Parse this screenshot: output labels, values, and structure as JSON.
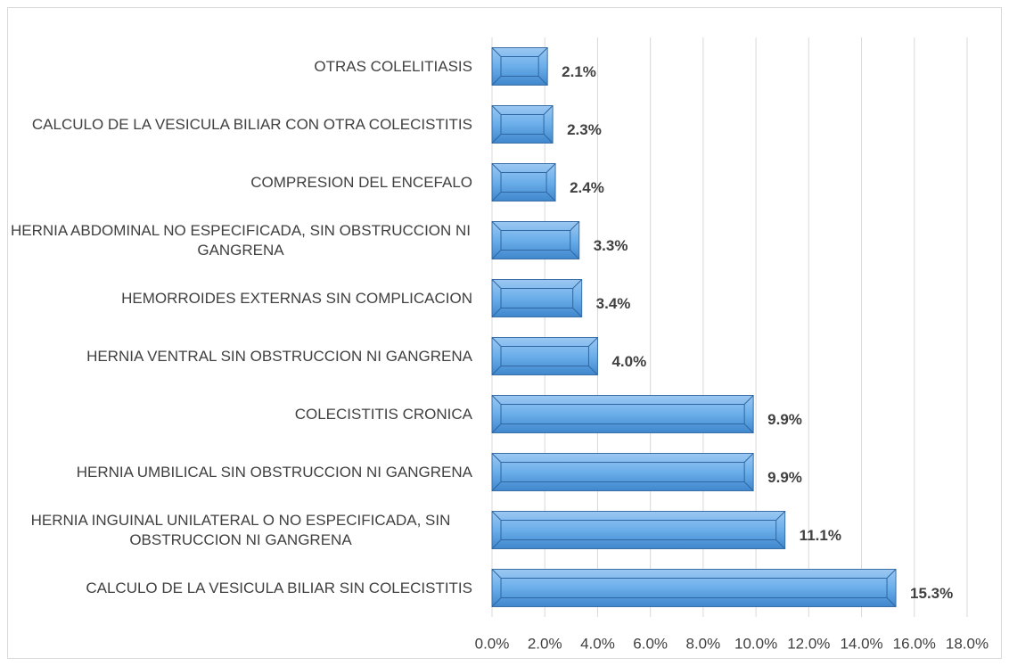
{
  "chart_data": {
    "type": "barh",
    "categories": [
      "OTRAS COLELITIASIS",
      "CALCULO DE LA VESICULA BILIAR CON OTRA COLECISTITIS",
      "COMPRESION DEL ENCEFALO",
      "HERNIA ABDOMINAL NO ESPECIFICADA, SIN OBSTRUCCION NI GANGRENA",
      "HEMORROIDES EXTERNAS SIN COMPLICACION",
      "HERNIA VENTRAL SIN OBSTRUCCION NI GANGRENA",
      "COLECISTITIS CRONICA",
      "HERNIA UMBILICAL SIN OBSTRUCCION NI GANGRENA",
      "HERNIA INGUINAL UNILATERAL O NO ESPECIFICADA, SIN OBSTRUCCION NI GANGRENA",
      "CALCULO DE LA VESICULA BILIAR SIN COLECISTITIS"
    ],
    "values": [
      2.1,
      2.3,
      2.4,
      3.3,
      3.4,
      4.0,
      9.9,
      9.9,
      11.1,
      15.3
    ],
    "value_labels": [
      "2.1%",
      "2.3%",
      "2.4%",
      "3.3%",
      "3.4%",
      "4.0%",
      "9.9%",
      "9.9%",
      "11.1%",
      "15.3%"
    ],
    "color": "#5b9bd5",
    "xlim": [
      0,
      18
    ],
    "xticks": [
      {
        "value": 0,
        "label": "0.0%"
      },
      {
        "value": 2,
        "label": "2.0%"
      },
      {
        "value": 4,
        "label": "4.0%"
      },
      {
        "value": 6,
        "label": "6.0%"
      },
      {
        "value": 8,
        "label": "8.0%"
      },
      {
        "value": 10,
        "label": "10.0%"
      },
      {
        "value": 12,
        "label": "12.0%"
      },
      {
        "value": 14,
        "label": "14.0%"
      },
      {
        "value": 16,
        "label": "16.0%"
      },
      {
        "value": 18,
        "label": "18.0%"
      }
    ],
    "grid": true
  }
}
